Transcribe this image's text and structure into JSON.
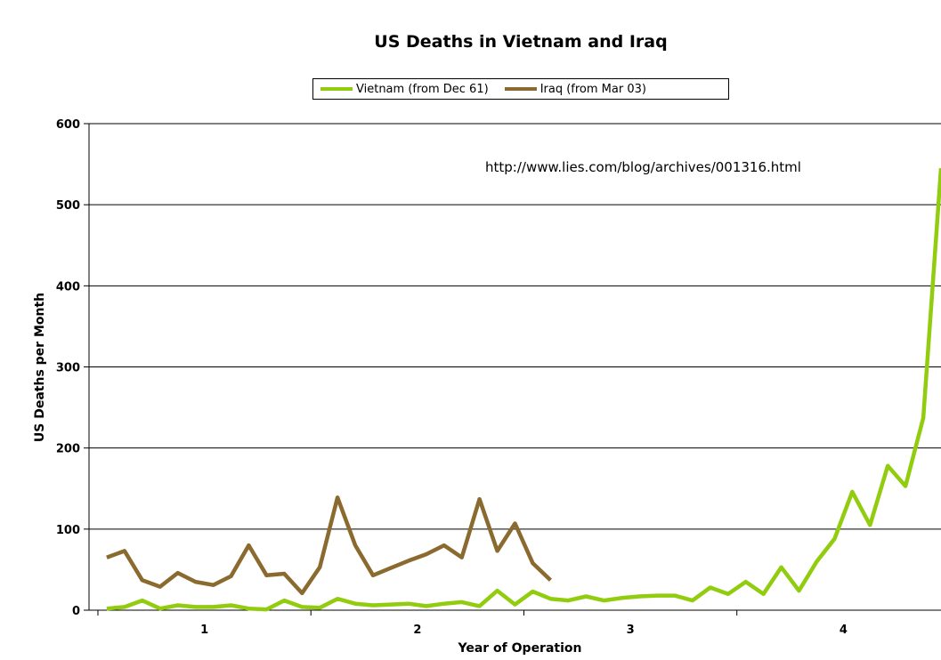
{
  "chart_data": {
    "type": "line",
    "title": "US Deaths in Vietnam and Iraq",
    "xlabel": "Year of Operation",
    "ylabel": "US Deaths per Month",
    "ylim": [
      0,
      600
    ],
    "yticks": [
      0,
      100,
      200,
      300,
      400,
      500,
      600
    ],
    "xticks": [
      "1",
      "2",
      "3",
      "4"
    ],
    "grid": "horizontal",
    "legend": "top-center",
    "annotation": "http://www.lies.com/blog/archives/001316.html",
    "series": [
      {
        "name": "Vietnam (from Dec 61)",
        "color": "#92cc0f",
        "values": [
          2,
          4,
          12,
          2,
          6,
          4,
          4,
          6,
          2,
          1,
          12,
          4,
          3,
          14,
          8,
          6,
          7,
          8,
          5,
          8,
          10,
          5,
          24,
          7,
          23,
          14,
          12,
          17,
          12,
          15,
          17,
          18,
          18,
          12,
          28,
          20,
          35,
          20,
          53,
          24,
          60,
          88,
          146,
          105,
          178,
          153,
          237,
          545
        ]
      },
      {
        "name": "Iraq (from Mar 03)",
        "color": "#8b6a2f",
        "values": [
          65,
          73,
          37,
          29,
          46,
          35,
          31,
          42,
          80,
          43,
          45,
          21,
          53,
          139,
          80,
          43,
          52,
          61,
          69,
          80,
          65,
          137,
          73,
          107,
          58,
          37
        ]
      }
    ]
  }
}
